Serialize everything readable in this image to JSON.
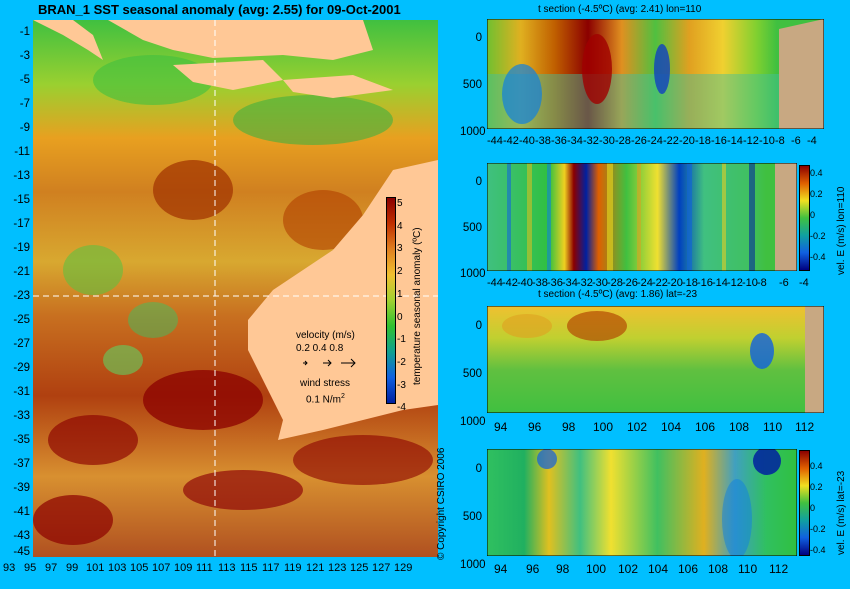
{
  "main_title": "BRAN_1 SST seasonal anomaly (avg: 2.55) for 09-Oct-2001",
  "map": {
    "lat_ticks": [
      "-1",
      "-3",
      "-5",
      "-7",
      "-9",
      "-11",
      "-13",
      "-15",
      "-17",
      "-19",
      "-21",
      "-23",
      "-25",
      "-27",
      "-29",
      "-31",
      "-33",
      "-35",
      "-37",
      "-39",
      "-41",
      "-43",
      "-45"
    ],
    "lon_ticks": [
      "93",
      "95",
      "97",
      "99",
      "101",
      "103",
      "105",
      "107",
      "109",
      "111",
      "113",
      "115",
      "117",
      "119",
      "121",
      "123",
      "125",
      "127",
      "129"
    ],
    "colorbar_ticks": [
      "5",
      "4",
      "3",
      "2",
      "1",
      "0",
      "-1",
      "-2",
      "-3",
      "-4"
    ],
    "colorbar_label": "temperature seasonal anomaly (ºC)",
    "velocity_label": "velocity (m/s)",
    "velocity_scale": "0.2 0.4 0.8",
    "wind_label": "wind stress",
    "wind_scale": "0.1 N/m",
    "wind_scale_sup": "2",
    "copyright": "© Copyright CSIRO 2006"
  },
  "panels": [
    {
      "title": "t section (-4.5ºC) (avg: 2.41) lon=110",
      "y_ticks": [
        "0",
        "500",
        "1000"
      ],
      "x_ticks": [
        "-44",
        "-42",
        "-40",
        "-38",
        "-36",
        "-34",
        "-32",
        "-30",
        "-28",
        "-26",
        "-24",
        "-22",
        "-20",
        "-18",
        "-16",
        "-14",
        "-12",
        "-10",
        "-8",
        "-6",
        "-4"
      ]
    },
    {
      "title": "",
      "y_ticks": [
        "0",
        "500",
        "1000"
      ],
      "x_ticks": [
        "-44",
        "-42",
        "-40",
        "-38",
        "-36",
        "-34",
        "-32",
        "-30",
        "-28",
        "-26",
        "-24",
        "-22",
        "-20",
        "-18",
        "-16",
        "-14",
        "-12",
        "-10",
        "-8",
        "-6",
        "-4"
      ],
      "cbar_ticks": [
        "0.4",
        "0.2",
        "0",
        "-0.2",
        "-0.4"
      ],
      "cbar_label": "vel. E (m/s) lon=110"
    },
    {
      "title": "t section (-4.5ºC) (avg: 1.86) lat=-23",
      "y_ticks": [
        "0",
        "500",
        "1000"
      ],
      "x_ticks": [
        "94",
        "96",
        "98",
        "100",
        "102",
        "104",
        "106",
        "108",
        "110",
        "112"
      ]
    },
    {
      "title": "",
      "y_ticks": [
        "0",
        "500",
        "1000"
      ],
      "x_ticks": [
        "94",
        "96",
        "98",
        "100",
        "102",
        "104",
        "106",
        "108",
        "110",
        "112"
      ],
      "cbar_ticks": [
        "0.4",
        "0.2",
        "0",
        "-0.2",
        "-0.4"
      ],
      "cbar_label": "vel. E (m/s) lat=-23"
    }
  ],
  "colors": {
    "background": "#00bfff",
    "land": "#ffc896",
    "section_land": "#c8a882",
    "warm": "#c06000",
    "hot": "#8b0000",
    "neutral": "#30c030",
    "cold": "#1060e0"
  }
}
